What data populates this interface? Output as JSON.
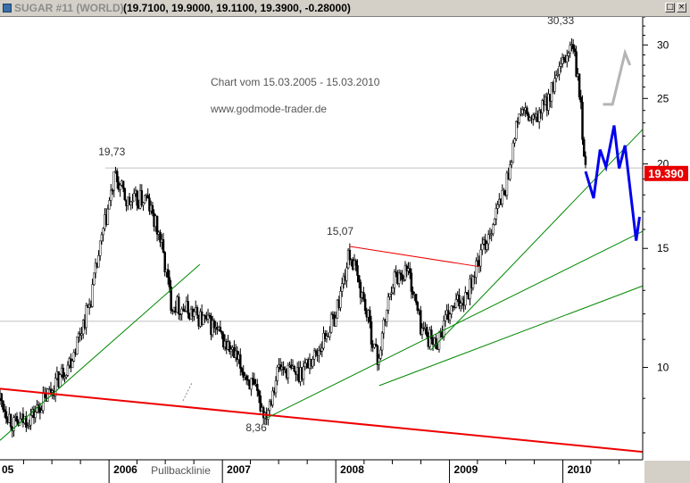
{
  "window": {
    "title": "SUGAR #11 (WORLD)",
    "ohlc_text": "(19.7100, 19.9000, 19.1100, 19.3900, -0.28000)",
    "restore_icon": "restore-icon",
    "close_icon": "close-icon"
  },
  "chart_data": {
    "type": "candlestick",
    "title": "Chart vom 15.03.2005 - 15.03.2010",
    "source": "www.godmode-trader.de",
    "instrument": "SUGAR #11 (WORLD)",
    "last_price_label": "19.390",
    "last_price": 19.39,
    "y_scale": "log",
    "ylim": [
      7.3,
      33
    ],
    "xlim": [
      "2005-01-15",
      "2010-09-15"
    ],
    "y_ticks": [
      10,
      15,
      20,
      25,
      30
    ],
    "y_tick_labels": [
      "10",
      "15",
      "20",
      "25",
      "30"
    ],
    "x_ticks": [
      "2005-01-01",
      "2006-01-01",
      "2007-01-01",
      "2008-01-01",
      "2009-01-01",
      "2010-01-01"
    ],
    "x_tick_labels": [
      "05",
      "2006",
      "2007",
      "2008",
      "2009",
      "2010"
    ],
    "price_path": [
      {
        "date": "2005-01-15",
        "price": 9.0
      },
      {
        "date": "2005-03-01",
        "price": 8.2
      },
      {
        "date": "2005-05-01",
        "price": 8.5
      },
      {
        "date": "2005-07-01",
        "price": 9.3
      },
      {
        "date": "2005-09-01",
        "price": 10.3
      },
      {
        "date": "2005-11-01",
        "price": 12.5
      },
      {
        "date": "2005-12-15",
        "price": 16.0
      },
      {
        "date": "2006-01-20",
        "price": 19.2
      },
      {
        "date": "2006-03-01",
        "price": 17.5
      },
      {
        "date": "2006-05-01",
        "price": 17.8
      },
      {
        "date": "2006-06-15",
        "price": 15.5
      },
      {
        "date": "2006-07-20",
        "price": 12.5
      },
      {
        "date": "2006-10-01",
        "price": 12.0
      },
      {
        "date": "2006-12-01",
        "price": 11.5
      },
      {
        "date": "2007-02-01",
        "price": 10.5
      },
      {
        "date": "2007-04-01",
        "price": 9.5
      },
      {
        "date": "2007-05-20",
        "price": 8.5
      },
      {
        "date": "2007-07-01",
        "price": 10.0
      },
      {
        "date": "2007-09-01",
        "price": 9.8
      },
      {
        "date": "2007-11-01",
        "price": 10.5
      },
      {
        "date": "2008-01-01",
        "price": 12.0
      },
      {
        "date": "2008-02-15",
        "price": 14.8
      },
      {
        "date": "2008-04-01",
        "price": 12.5
      },
      {
        "date": "2008-05-15",
        "price": 10.2
      },
      {
        "date": "2008-07-01",
        "price": 13.5
      },
      {
        "date": "2008-08-20",
        "price": 14.0
      },
      {
        "date": "2008-10-01",
        "price": 11.5
      },
      {
        "date": "2008-11-15",
        "price": 10.8
      },
      {
        "date": "2009-01-01",
        "price": 12.0
      },
      {
        "date": "2009-03-01",
        "price": 13.0
      },
      {
        "date": "2009-05-01",
        "price": 15.5
      },
      {
        "date": "2009-07-01",
        "price": 18.5
      },
      {
        "date": "2009-08-15",
        "price": 24.0
      },
      {
        "date": "2009-10-01",
        "price": 23.0
      },
      {
        "date": "2009-11-15",
        "price": 25.0
      },
      {
        "date": "2010-01-01",
        "price": 28.0
      },
      {
        "date": "2010-02-01",
        "price": 30.3
      },
      {
        "date": "2010-02-25",
        "price": 25.0
      },
      {
        "date": "2010-03-15",
        "price": 19.39
      }
    ],
    "projection_blue": [
      {
        "date": "2010-03-15",
        "price": 19.5
      },
      {
        "date": "2010-04-10",
        "price": 17.8
      },
      {
        "date": "2010-05-01",
        "price": 21.0
      },
      {
        "date": "2010-05-20",
        "price": 19.8
      },
      {
        "date": "2010-06-15",
        "price": 22.8
      },
      {
        "date": "2010-07-01",
        "price": 19.7
      },
      {
        "date": "2010-07-20",
        "price": 21.3
      },
      {
        "date": "2010-08-25",
        "price": 15.4
      },
      {
        "date": "2010-09-05",
        "price": 16.7
      }
    ],
    "projection_gray": [
      {
        "date": "2010-05-10",
        "price": 24.5
      },
      {
        "date": "2010-06-10",
        "price": 24.5
      },
      {
        "date": "2010-07-20",
        "price": 29.2
      },
      {
        "date": "2010-08-05",
        "price": 28.0
      }
    ],
    "horizontal_lines": [
      {
        "price": 19.73,
        "from": "2005-12-20",
        "to": "2010-09-15",
        "color": "#c0c0c0"
      },
      {
        "price": 11.7,
        "from": "2005-01-15",
        "to": "2010-09-15",
        "color": "#c0c0c0"
      }
    ],
    "trendlines": [
      {
        "from": {
          "date": "2005-01-15",
          "price": 9.3
        },
        "to": {
          "date": "2010-09-15",
          "price": 7.5
        },
        "color": "#ee0000",
        "width": 2
      },
      {
        "from": {
          "date": "2008-02-15",
          "price": 15.1
        },
        "to": {
          "date": "2009-04-05",
          "price": 14.1
        },
        "color": "#ee0000",
        "width": 1
      },
      {
        "from": {
          "date": "2005-01-15",
          "price": 7.8
        },
        "to": {
          "date": "2006-10-20",
          "price": 14.2
        },
        "color": "#008800",
        "width": 1
      },
      {
        "from": {
          "date": "2007-05-20",
          "price": 8.4
        },
        "to": {
          "date": "2010-09-15",
          "price": 15.9
        },
        "color": "#008800",
        "width": 1
      },
      {
        "from": {
          "date": "2008-05-20",
          "price": 9.4
        },
        "to": {
          "date": "2010-09-15",
          "price": 13.2
        },
        "color": "#008800",
        "width": 1
      },
      {
        "from": {
          "date": "2008-11-01",
          "price": 10.6
        },
        "to": {
          "date": "2010-09-15",
          "price": 22.5
        },
        "color": "#008800",
        "width": 1
      }
    ],
    "annotations": [
      {
        "text": "19,73",
        "date": "2006-01-10",
        "price": 20.6,
        "anchor": "middle"
      },
      {
        "text": "15,07",
        "date": "2008-01-15",
        "price": 15.7,
        "anchor": "middle"
      },
      {
        "text": "30,33",
        "date": "2009-12-25",
        "price": 32.2,
        "anchor": "middle"
      },
      {
        "text": "8,36",
        "date": "2007-04-20",
        "price": 8.05,
        "anchor": "middle"
      },
      {
        "text": "Pullbacklinie",
        "date": "2006-08-20",
        "price": 6.95,
        "anchor": "middle"
      }
    ],
    "grid": false,
    "legend": "none"
  }
}
